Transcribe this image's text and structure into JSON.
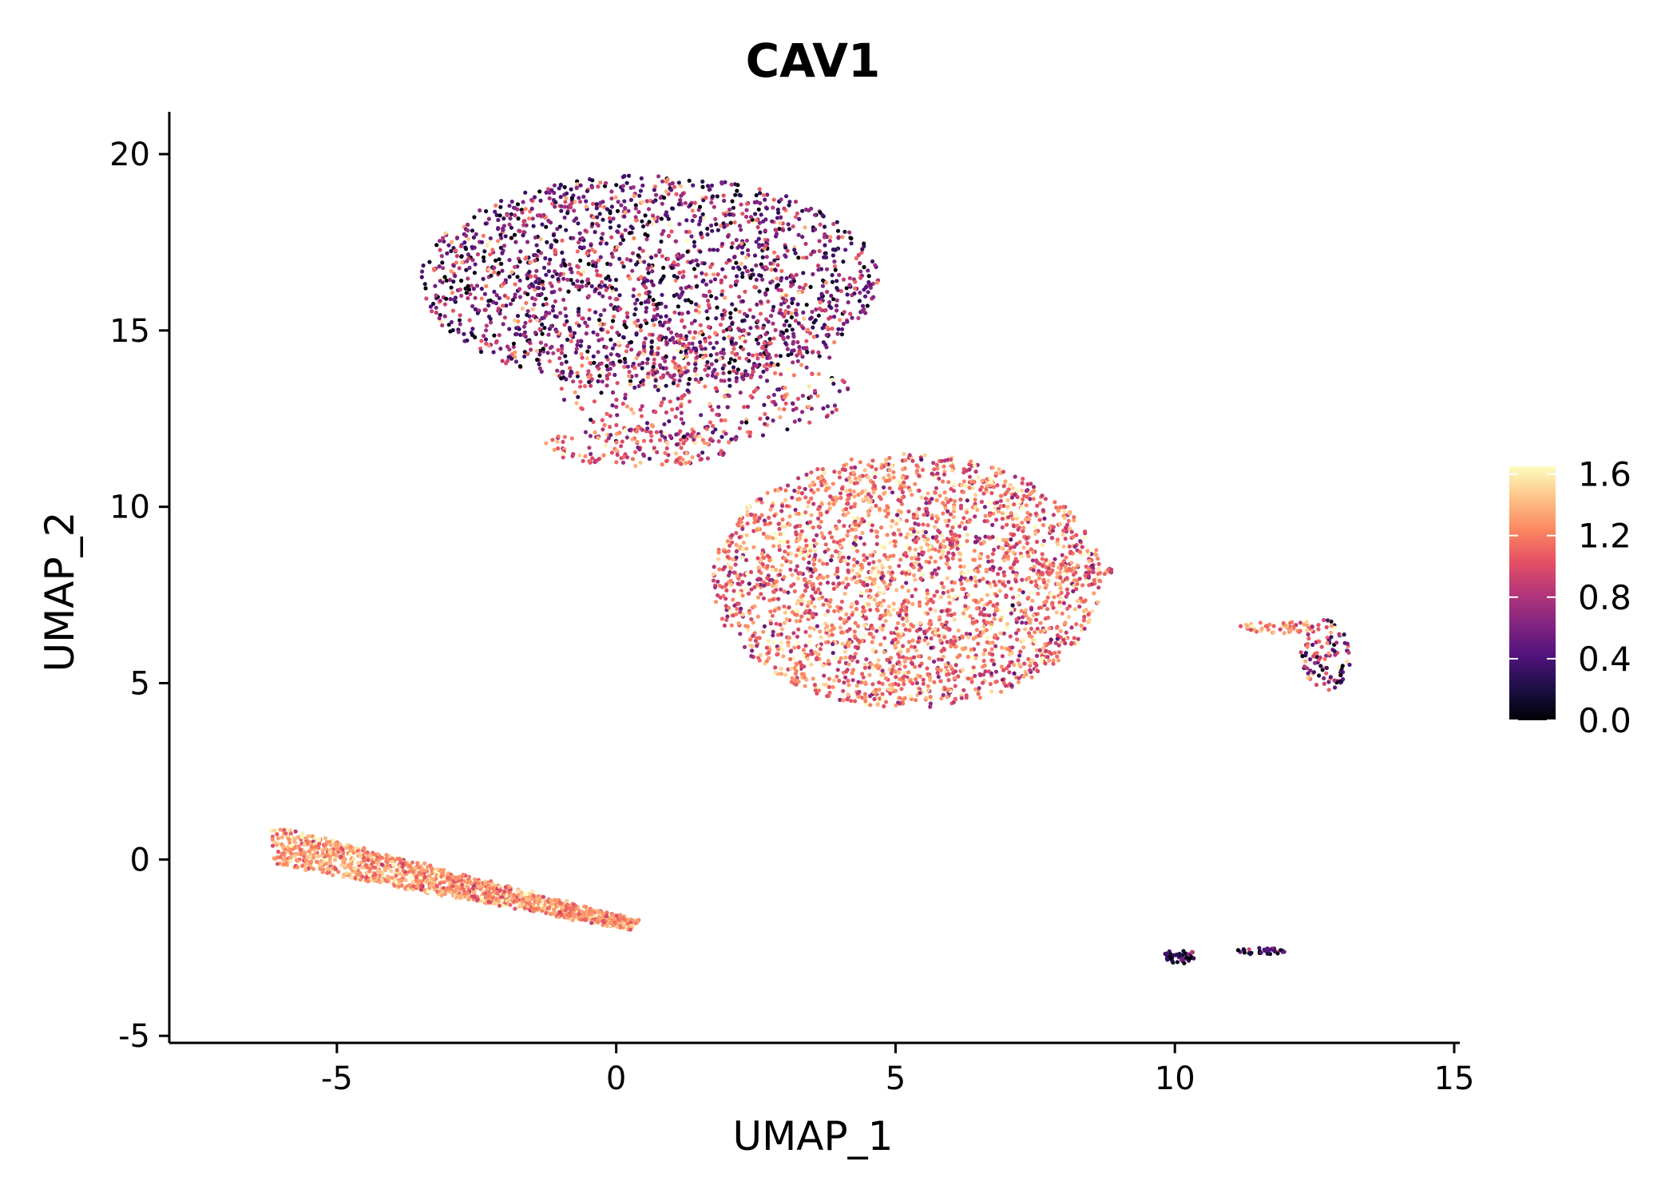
{
  "chart_data": {
    "type": "scatter",
    "title": "CAV1",
    "xlabel": "UMAP_1",
    "ylabel": "UMAP_2",
    "xlim": [
      -8.0,
      15.1
    ],
    "ylim": [
      -5.2,
      21.2
    ],
    "x_ticks": [
      -5,
      0,
      5,
      10,
      15
    ],
    "x_tick_labels": [
      "-5",
      "0",
      "5",
      "10",
      "15"
    ],
    "y_ticks": [
      -5,
      0,
      5,
      10,
      15,
      20
    ],
    "y_tick_labels": [
      "-5",
      "0",
      "5",
      "10",
      "15",
      "20"
    ],
    "grid": false,
    "legend": {
      "position": "right",
      "min": 0.0,
      "max": 1.65,
      "ticks": [
        0.0,
        0.4,
        0.8,
        1.2,
        1.6
      ],
      "tick_labels": [
        "0.0",
        "0.4",
        "0.8",
        "1.2",
        "1.6"
      ]
    },
    "colormap": [
      "#000004",
      "#1c1044",
      "#4f127b",
      "#812581",
      "#b5367a",
      "#e55064",
      "#fb8761",
      "#fec287",
      "#fcfdbf"
    ],
    "clusters": [
      {
        "name": "upper-cluster",
        "shape": "ellipse",
        "cx": 0.6,
        "cy": 16.4,
        "rx": 4.1,
        "ry": 3.0,
        "n": 1900,
        "mean": 0.6,
        "sd": 0.4
      },
      {
        "name": "upper-neck",
        "shape": "ellipse",
        "cx": 1.6,
        "cy": 13.4,
        "rx": 2.6,
        "ry": 1.6,
        "n": 350,
        "mean": 0.85,
        "sd": 0.35
      },
      {
        "name": "bridge-cluster",
        "shape": "ellipse",
        "cx": 0.4,
        "cy": 11.7,
        "rx": 1.7,
        "ry": 0.55,
        "n": 160,
        "mean": 1.05,
        "sd": 0.3
      },
      {
        "name": "central-cluster",
        "shape": "ellipse",
        "cx": 5.2,
        "cy": 7.9,
        "rx": 3.5,
        "ry": 3.6,
        "n": 2600,
        "mean": 1.15,
        "sd": 0.28
      },
      {
        "name": "central-tail",
        "shape": "ellipse",
        "cx": 8.2,
        "cy": 8.2,
        "rx": 0.7,
        "ry": 0.25,
        "n": 40,
        "mean": 1.1,
        "sd": 0.25
      },
      {
        "name": "lower-left-cluster",
        "shape": "band",
        "x0": -6.1,
        "y0": 0.4,
        "x1": 0.3,
        "y1": -1.85,
        "w0": 0.55,
        "w1": 0.15,
        "n": 1300,
        "mean": 1.3,
        "sd": 0.18
      },
      {
        "name": "right-cluster",
        "shape": "ellipse",
        "cx": 12.7,
        "cy": 5.8,
        "rx": 0.45,
        "ry": 1.0,
        "n": 110,
        "mean": 0.7,
        "sd": 0.5
      },
      {
        "name": "right-cluster-top",
        "shape": "ellipse",
        "cx": 11.9,
        "cy": 6.6,
        "rx": 0.75,
        "ry": 0.18,
        "n": 50,
        "mean": 1.2,
        "sd": 0.2
      },
      {
        "name": "small-cluster-a",
        "shape": "ellipse",
        "cx": 10.1,
        "cy": -2.75,
        "rx": 0.3,
        "ry": 0.2,
        "n": 45,
        "mean": 0.25,
        "sd": 0.3
      },
      {
        "name": "small-cluster-b",
        "shape": "ellipse",
        "cx": 11.55,
        "cy": -2.6,
        "rx": 0.45,
        "ry": 0.09,
        "n": 35,
        "mean": 0.3,
        "sd": 0.3
      }
    ]
  }
}
